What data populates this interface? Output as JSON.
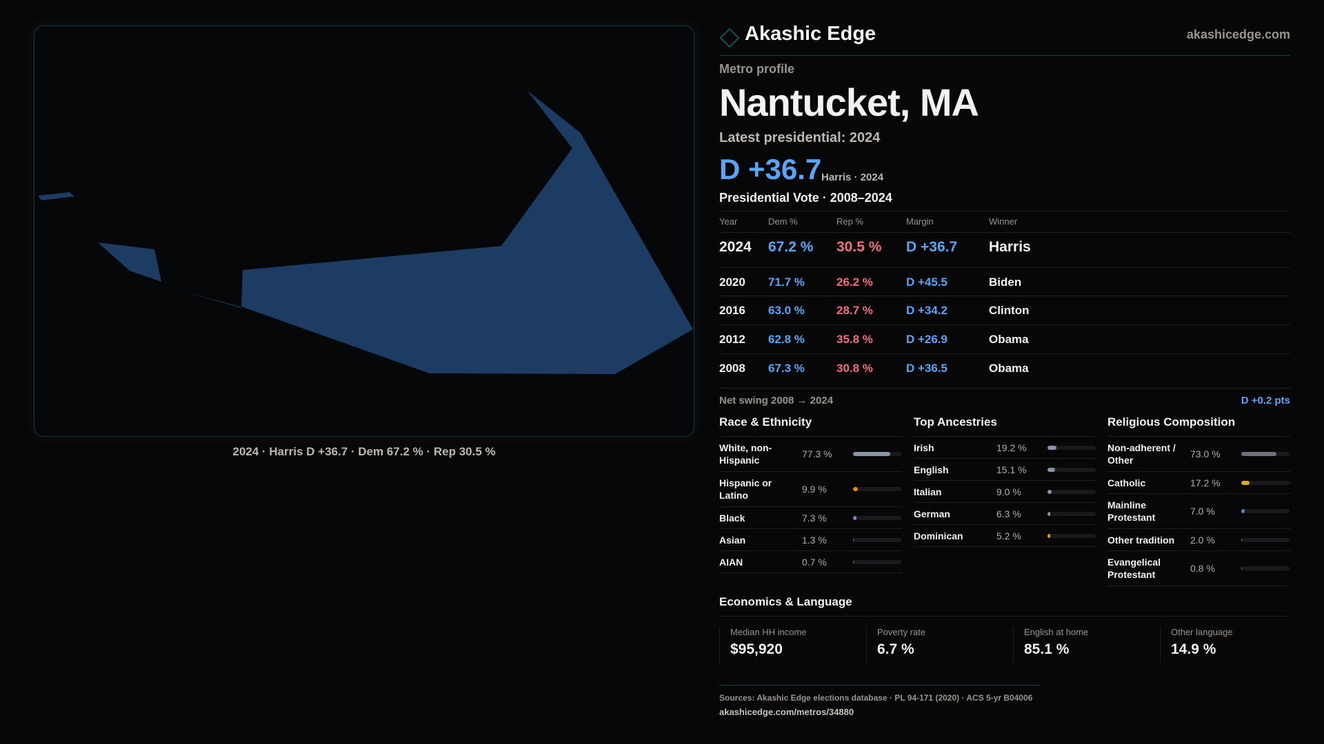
{
  "map": {
    "fill": "#1d3c63",
    "caption": "2024 · Harris D +36.7 · Dem 67.2 % · Rep 30.5 %"
  },
  "header": {
    "brand": "Akashic Edge",
    "site": "akashicedge.com"
  },
  "profile": {
    "kicker": "Metro profile",
    "title": "Nantucket, MA",
    "latest": "Latest presidential: 2024",
    "margin": "D +36.7",
    "margin_note": "Harris · 2024"
  },
  "vote": {
    "title": "Presidential Vote · 2008–2024",
    "headers": [
      "Year",
      "Dem %",
      "Rep %",
      "Margin",
      "Winner"
    ],
    "rows": [
      {
        "year": "2024",
        "dem": "67.2 %",
        "rep": "30.5 %",
        "margin": "D +36.7",
        "winner": "Harris"
      },
      {
        "year": "2020",
        "dem": "71.7 %",
        "rep": "26.2 %",
        "margin": "D +45.5",
        "winner": "Biden"
      },
      {
        "year": "2016",
        "dem": "63.0 %",
        "rep": "28.7 %",
        "margin": "D +34.2",
        "winner": "Clinton"
      },
      {
        "year": "2012",
        "dem": "62.8 %",
        "rep": "35.8 %",
        "margin": "D +26.9",
        "winner": "Obama"
      },
      {
        "year": "2008",
        "dem": "67.3 %",
        "rep": "30.8 %",
        "margin": "D +36.5",
        "winner": "Obama"
      }
    ],
    "swing_label": "Net swing 2008 → 2024",
    "swing_value": "D +0.2 pts"
  },
  "race": {
    "title": "Race & Ethnicity",
    "items": [
      {
        "label": "White, non-Hispanic",
        "value": "77.3 %",
        "pct": 77.3,
        "color": "#8a96a8"
      },
      {
        "label": "Hispanic or Latino",
        "value": "9.9 %",
        "pct": 9.9,
        "color": "#e08a10"
      },
      {
        "label": "Black",
        "value": "7.3 %",
        "pct": 7.3,
        "color": "#9a72e0"
      },
      {
        "label": "Asian",
        "value": "1.3 %",
        "pct": 1.3,
        "color": "#2ec4a0"
      },
      {
        "label": "AIAN",
        "value": "0.7 %",
        "pct": 0.7,
        "color": "#e07a20"
      }
    ]
  },
  "ancestry": {
    "title": "Top Ancestries",
    "items": [
      {
        "label": "Irish",
        "value": "19.2 %",
        "pct": 19.2,
        "color": "#8a96a8"
      },
      {
        "label": "English",
        "value": "15.1 %",
        "pct": 15.1,
        "color": "#8a96a8"
      },
      {
        "label": "Italian",
        "value": "9.0 %",
        "pct": 9.0,
        "color": "#8a96a8"
      },
      {
        "label": "German",
        "value": "6.3 %",
        "pct": 6.3,
        "color": "#8a96a8"
      },
      {
        "label": "Dominican",
        "value": "5.2 %",
        "pct": 5.2,
        "color": "#e0a010"
      }
    ]
  },
  "religion": {
    "title": "Religious Composition",
    "items": [
      {
        "label": "Non-adherent / Other",
        "value": "73.0 %",
        "pct": 73.0,
        "color": "#6e717c"
      },
      {
        "label": "Catholic",
        "value": "17.2 %",
        "pct": 17.2,
        "color": "#e0aa20"
      },
      {
        "label": "Mainline Protestant",
        "value": "7.0 %",
        "pct": 7.0,
        "color": "#4a8ae0"
      },
      {
        "label": "Other tradition",
        "value": "2.0 %",
        "pct": 2.0,
        "color": "#8a7a90"
      },
      {
        "label": "Evangelical Protestant",
        "value": "0.8 %",
        "pct": 0.8,
        "color": "#e05050"
      }
    ]
  },
  "econ": {
    "title": "Economics & Language",
    "stats": [
      {
        "label": "Median HH income",
        "value": "$95,920"
      },
      {
        "label": "Poverty rate",
        "value": "6.7 %"
      },
      {
        "label": "English at home",
        "value": "85.1 %"
      },
      {
        "label": "Other language",
        "value": "14.9 %"
      }
    ]
  },
  "footer": {
    "sources": "Sources: Akashic Edge elections database · PL 94-171 (2020) · ACS 5-yr B04006",
    "url": "akashicedge.com/metros/34880"
  }
}
